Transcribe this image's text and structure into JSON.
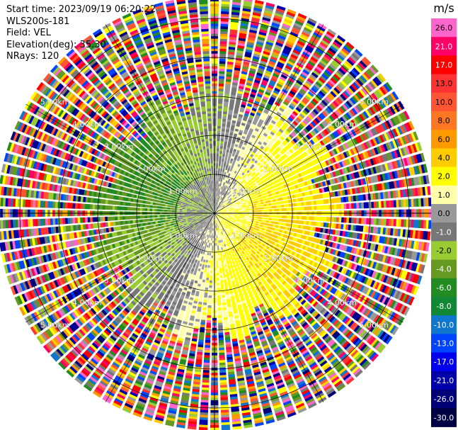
{
  "header": {
    "start_time": "Start time: 2023/09/19 06:20:22",
    "instrument": "WLS200s-181",
    "field": "Field: VEL",
    "elevation": "Elevation(deg): 35.30",
    "nrays": "NRays: 120"
  },
  "colorbar": {
    "unit": "m/s",
    "boundaries": [
      "26.0",
      "21.0",
      "17.0",
      "13.0",
      "10.0",
      "8.0",
      "6.0",
      "4.0",
      "2.0",
      "1.0",
      "0.0",
      "-1.0",
      "-2.0",
      "-4.0",
      "-6.0",
      "-8.0",
      "-10.0",
      "-13.0",
      "-17.0",
      "-21.0",
      "-26.0",
      "-30.0"
    ],
    "colors": [
      "#ff66cc",
      "#ff0066",
      "#ff0000",
      "#ff3333",
      "#ff5533",
      "#ff7722",
      "#ff9900",
      "#ffcc00",
      "#ffff00",
      "#ffffaa",
      "#999999",
      "#777777",
      "#99cc33",
      "#669922",
      "#228b22",
      "#118833",
      "#1177cc",
      "#0044ff",
      "#0000ee",
      "#0000aa",
      "#000077",
      "#000044"
    ]
  },
  "chart_data": {
    "type": "ppi",
    "field": "VEL",
    "nrays": 120,
    "elevation_deg": 35.3,
    "range_rings_km": [
      1.0,
      2.0,
      3.0,
      4.0,
      5.0
    ],
    "range_ring_labels": [
      "1.00km",
      "2.00km",
      "3.00km",
      "4.00km",
      "5.00km"
    ],
    "valid_range_km": 3.2,
    "max_range_km": 5.6,
    "grid": true
  }
}
